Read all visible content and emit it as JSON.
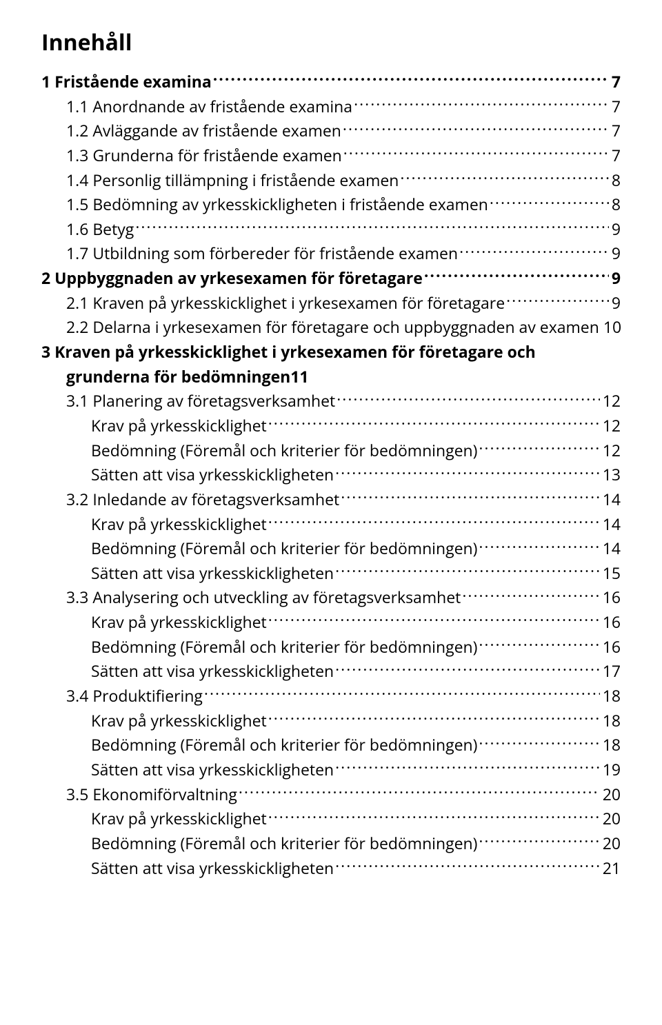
{
  "title": "Innehåll",
  "colors": {
    "text": "#000000",
    "background": "#ffffff"
  },
  "typography": {
    "title_fontsize_pt": 24,
    "entry_fontsize_pt": 17,
    "font_family": "Myriad Pro / sans-serif"
  },
  "toc": [
    {
      "level": 0,
      "bold": true,
      "label": "1  Fristående examina",
      "page": "7"
    },
    {
      "level": 1,
      "bold": false,
      "label": "1.1  Anordnande av fristående examina",
      "page": "7"
    },
    {
      "level": 1,
      "bold": false,
      "label": "1.2  Avläggande av fristående examen",
      "page": "7"
    },
    {
      "level": 1,
      "bold": false,
      "label": "1.3  Grunderna för fristående examen",
      "page": "7"
    },
    {
      "level": 1,
      "bold": false,
      "label": "1.4  Personlig tillämpning i fristående examen",
      "page": "8"
    },
    {
      "level": 1,
      "bold": false,
      "label": "1.5  Bedömning av yrkesskickligheten i fristående examen",
      "page": "8"
    },
    {
      "level": 1,
      "bold": false,
      "label": "1.6  Betyg",
      "page": "9"
    },
    {
      "level": 1,
      "bold": false,
      "label": "1.7  Utbildning som förbereder för fristående examen",
      "page": "9"
    },
    {
      "level": 0,
      "bold": true,
      "label": "2  Uppbyggnaden av yrkesexamen för företagare",
      "page": "9"
    },
    {
      "level": 1,
      "bold": false,
      "label": "2.1  Kraven på yrkesskicklighet i yrkesexamen för företagare",
      "page": "9"
    },
    {
      "level": 1,
      "bold": false,
      "label": "2.2  Delarna i yrkesexamen för företagare och uppbyggnaden av examen",
      "page": "10"
    },
    {
      "level": 0,
      "bold": true,
      "multiline": true,
      "label_line1": "3  Kraven på yrkesskicklighet i yrkesexamen för företagare  och",
      "label_line2": "grunderna för bedömningen",
      "page": "11"
    },
    {
      "level": 1,
      "bold": false,
      "label": "3.1  Planering av företagsverksamhet",
      "page": "12"
    },
    {
      "level": 2,
      "bold": false,
      "label": "Krav på yrkesskicklighet",
      "page": "12"
    },
    {
      "level": 2,
      "bold": false,
      "label": "Bedömning (Föremål och kriterier för bedömningen)",
      "page": "12"
    },
    {
      "level": 2,
      "bold": false,
      "label": "Sätten att visa yrkesskickligheten",
      "page": "13"
    },
    {
      "level": 1,
      "bold": false,
      "label": "3.2  Inledande av företagsverksamhet",
      "page": "14"
    },
    {
      "level": 2,
      "bold": false,
      "label": "Krav på yrkesskicklighet",
      "page": "14"
    },
    {
      "level": 2,
      "bold": false,
      "label": "Bedömning (Föremål och kriterier för bedömningen)",
      "page": "14"
    },
    {
      "level": 2,
      "bold": false,
      "label": "Sätten att visa yrkesskickligheten",
      "page": "15"
    },
    {
      "level": 1,
      "bold": false,
      "label": "3.3  Analysering och utveckling av företagsverksamhet",
      "page": "16"
    },
    {
      "level": 2,
      "bold": false,
      "label": "Krav på yrkesskicklighet",
      "page": "16"
    },
    {
      "level": 2,
      "bold": false,
      "label": "Bedömning (Föremål och kriterier för bedömningen)",
      "page": "16"
    },
    {
      "level": 2,
      "bold": false,
      "label": "Sätten att visa yrkesskickligheten",
      "page": "17"
    },
    {
      "level": 1,
      "bold": false,
      "label": "3.4  Produktifiering",
      "page": "18"
    },
    {
      "level": 2,
      "bold": false,
      "label": "Krav på yrkesskicklighet",
      "page": "18"
    },
    {
      "level": 2,
      "bold": false,
      "label": "Bedömning (Föremål och kriterier för bedömningen)",
      "page": "18"
    },
    {
      "level": 2,
      "bold": false,
      "label": "Sätten att visa yrkesskickligheten",
      "page": "19"
    },
    {
      "level": 1,
      "bold": false,
      "label": "3.5  Ekonomiförvaltning",
      "page": "20"
    },
    {
      "level": 2,
      "bold": false,
      "label": "Krav på yrkesskicklighet",
      "page": "20"
    },
    {
      "level": 2,
      "bold": false,
      "label": "Bedömning (Föremål och kriterier för bedömningen)",
      "page": "20"
    },
    {
      "level": 2,
      "bold": false,
      "label": "Sätten att visa yrkesskickligheten",
      "page": "21"
    }
  ]
}
